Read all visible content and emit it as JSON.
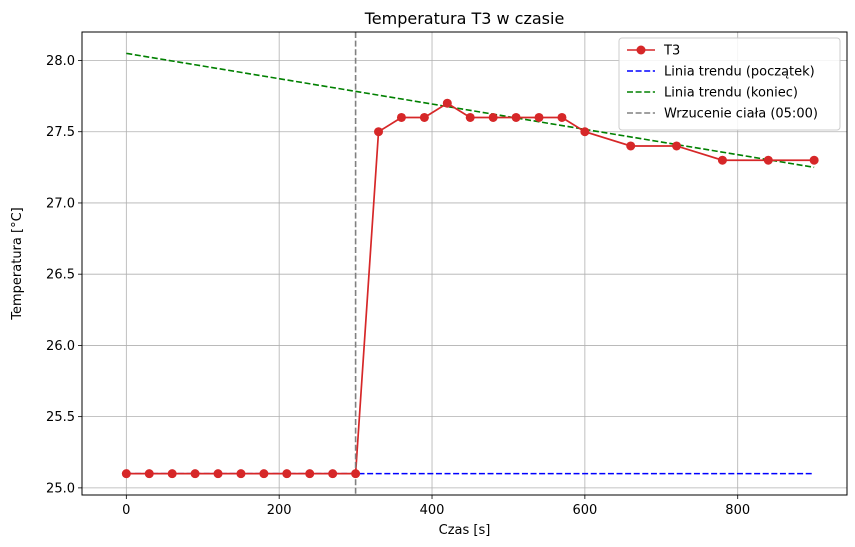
{
  "chart_data": {
    "type": "line",
    "title": "Temperatura T3 w czasie",
    "xlabel": "Czas [s]",
    "ylabel": "Temperatura [°C]",
    "xlim": [
      -58,
      943
    ],
    "ylim": [
      24.95,
      28.2
    ],
    "xticks": [
      0,
      200,
      400,
      600,
      800
    ],
    "yticks": [
      25.0,
      25.5,
      26.0,
      26.5,
      27.0,
      27.5,
      28.0
    ],
    "ytick_labels": [
      "25.0",
      "25.5",
      "26.0",
      "26.5",
      "27.0",
      "27.5",
      "28.0"
    ],
    "grid": true,
    "legend_position": "top-right",
    "series": [
      {
        "name": "T3",
        "style": "solid-with-markers",
        "color": "#d62728",
        "x": [
          0,
          30,
          60,
          90,
          120,
          150,
          180,
          210,
          240,
          270,
          300,
          330,
          360,
          390,
          420,
          450,
          480,
          510,
          540,
          570,
          600,
          660,
          720,
          780,
          840,
          900
        ],
        "y": [
          25.1,
          25.1,
          25.1,
          25.1,
          25.1,
          25.1,
          25.1,
          25.1,
          25.1,
          25.1,
          25.1,
          27.5,
          27.6,
          27.6,
          27.7,
          27.6,
          27.6,
          27.6,
          27.6,
          27.6,
          27.5,
          27.4,
          27.4,
          27.3,
          27.3,
          27.3
        ]
      },
      {
        "name": "Linia trendu (początek)",
        "style": "dashed",
        "color": "#0000ff",
        "x": [
          0,
          900
        ],
        "y": [
          25.1,
          25.1
        ]
      },
      {
        "name": "Linia trendu (koniec)",
        "style": "dashed",
        "color": "#008000",
        "x": [
          0,
          900
        ],
        "y": [
          28.05,
          27.25
        ]
      }
    ],
    "annotations": [
      {
        "name": "Wrzucenie ciała (05:00)",
        "type": "vertical-line",
        "style": "dashed",
        "color": "#808080",
        "x": 300
      }
    ]
  }
}
